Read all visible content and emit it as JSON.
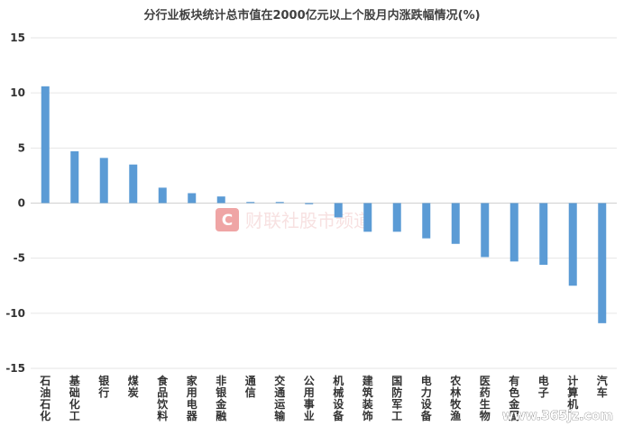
{
  "chart_data": {
    "type": "bar",
    "title": "分行业板块统计总市值在2000亿元以上个股月内涨跌幅情况(%)",
    "categories": [
      "石油石化",
      "基础化工",
      "银行",
      "煤炭",
      "食品饮料",
      "家用电器",
      "非银金融",
      "通信",
      "交通运输",
      "公用事业",
      "机械设备",
      "建筑装饰",
      "国防军工",
      "电力设备",
      "农林牧渔",
      "医药生物",
      "有色金属",
      "电子",
      "计算机",
      "汽车"
    ],
    "values": [
      10.6,
      4.7,
      4.1,
      3.5,
      1.4,
      0.9,
      0.6,
      0.1,
      0.1,
      -0.1,
      -1.3,
      -2.6,
      -2.6,
      -3.2,
      -3.7,
      -4.9,
      -5.3,
      -5.6,
      -7.5,
      -10.9
    ],
    "ylim": [
      -15,
      15
    ],
    "yticks": [
      15,
      10,
      5,
      0,
      -5,
      -10,
      -15
    ],
    "xlabel": "",
    "ylabel": "",
    "grid": true,
    "bar_color": "#5b9bd5"
  },
  "watermark": {
    "logo_letter": "C",
    "text": "财联社股市频道",
    "color": "#e25c5c"
  },
  "site_mark": "www.365jz.com"
}
